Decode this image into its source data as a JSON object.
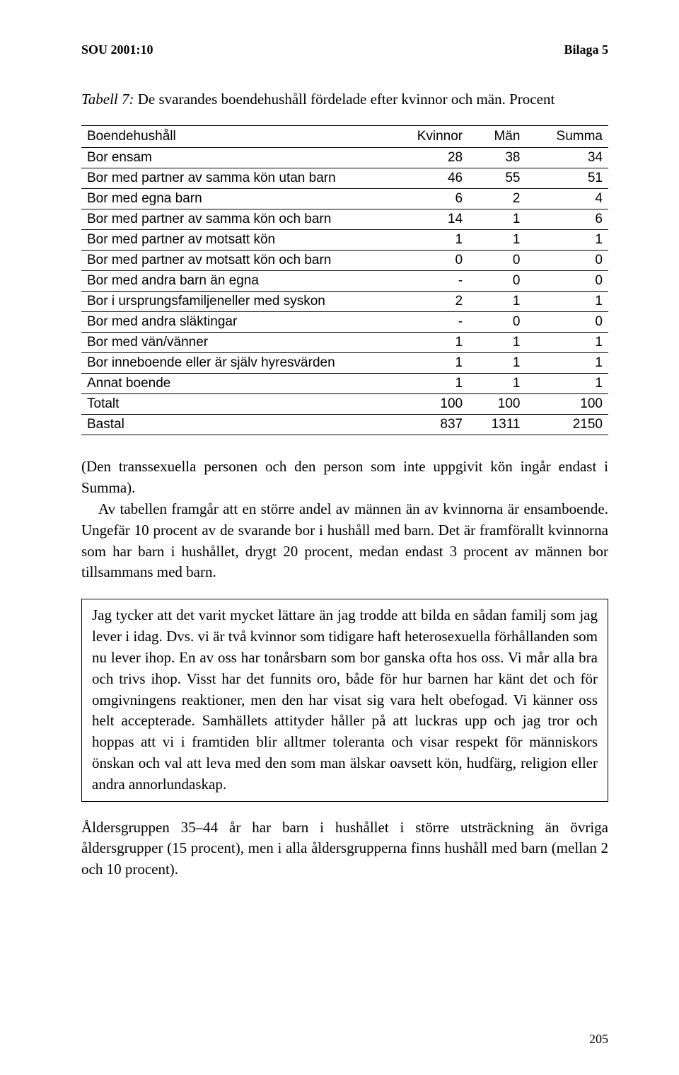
{
  "header": {
    "left": "SOU 2001:10",
    "right": "Bilaga 5"
  },
  "caption": {
    "label": "Tabell 7:",
    "text": " De svarandes boendehushåll fördelade efter kvinnor och män. Procent"
  },
  "table": {
    "columns": [
      "Boendehushåll",
      "Kvinnor",
      "Män",
      "Summa"
    ],
    "rows": [
      [
        "Bor ensam",
        "28",
        "38",
        "34"
      ],
      [
        "Bor med partner av samma kön utan barn",
        "46",
        "55",
        "51"
      ],
      [
        "Bor med egna barn",
        "6",
        "2",
        "4"
      ],
      [
        "Bor med partner av samma kön och barn",
        "14",
        "1",
        "6"
      ],
      [
        "Bor med partner av motsatt kön",
        "1",
        "1",
        "1"
      ],
      [
        "Bor med partner av motsatt kön och barn",
        "0",
        "0",
        "0"
      ],
      [
        "Bor med andra barn än egna",
        "-",
        "0",
        "0"
      ],
      [
        "Bor i ursprungsfamiljeneller med syskon",
        "2",
        "1",
        "1"
      ],
      [
        "Bor med andra släktingar",
        "-",
        "0",
        "0"
      ],
      [
        "Bor med vän/vänner",
        "1",
        "1",
        "1"
      ],
      [
        "Bor inneboende eller är själv hyresvärden",
        "1",
        "1",
        "1"
      ],
      [
        "Annat boende",
        "1",
        "1",
        "1"
      ],
      [
        "Totalt",
        "100",
        "100",
        "100"
      ],
      [
        "Bastal",
        "837",
        "1311",
        "2150"
      ]
    ]
  },
  "para1": {
    "p1": "(Den transsexuella personen och den person som inte uppgivit kön ingår endast i Summa).",
    "p2": "Av tabellen framgår att en större andel av männen än av kvinnorna är ensamboende. Ungefär 10 procent av de svarande bor i hushåll med barn. Det är framförallt kvinnorna som har barn i hushållet, drygt 20 procent, medan endast 3 procent av männen bor tillsammans med barn."
  },
  "boxed": "Jag tycker att det varit mycket lättare än jag trodde att bilda en sådan familj som jag lever i idag. Dvs. vi är två kvinnor som tidigare haft heterosexuella förhållanden som nu lever ihop. En av oss har tonårsbarn som bor ganska ofta hos oss. Vi mår alla bra och trivs ihop. Visst har det funnits oro, både för hur barnen har känt det och för omgivningens reaktioner, men den har visat sig vara helt obefogad. Vi känner oss helt accepterade. Samhällets attityder håller på att luckras upp och jag tror och hoppas att vi i framtiden blir alltmer toleranta och visar respekt för människors önskan och val att leva med den som man älskar oavsett kön, hudfärg, religion eller andra annorlundaskap.",
  "para2": "Åldersgruppen 35–44 år har barn i hushållet i större utsträckning än övriga åldersgrupper (15 procent), men i alla åldersgrupperna finns hushåll med barn (mellan 2 och 10 procent).",
  "pageNumber": "205"
}
